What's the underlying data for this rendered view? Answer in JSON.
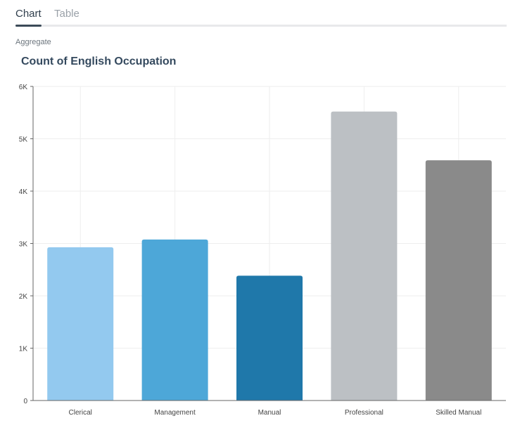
{
  "tabs": [
    {
      "label": "Chart",
      "active": true
    },
    {
      "label": "Table",
      "active": false
    }
  ],
  "aggregate_label": "Aggregate",
  "chart_data": {
    "type": "bar",
    "title": "Count of English Occupation",
    "categories": [
      "Clerical",
      "Management",
      "Manual",
      "Professional",
      "Skilled Manual"
    ],
    "values": [
      2928,
      3075,
      2384,
      5520,
      4589
    ],
    "colors": [
      "#93c9ef",
      "#4da7d8",
      "#1f78aa",
      "#bcc0c4",
      "#8a8a8a"
    ],
    "ylim": [
      0,
      6000
    ],
    "yticks": [
      {
        "v": 0,
        "label": "0"
      },
      {
        "v": 1000,
        "label": "1K"
      },
      {
        "v": 2000,
        "label": "2K"
      },
      {
        "v": 3000,
        "label": "3K"
      },
      {
        "v": 4000,
        "label": "4K"
      },
      {
        "v": 5000,
        "label": "5K"
      },
      {
        "v": 6000,
        "label": "6K"
      }
    ],
    "grid": true,
    "xlabel": "",
    "ylabel": ""
  }
}
